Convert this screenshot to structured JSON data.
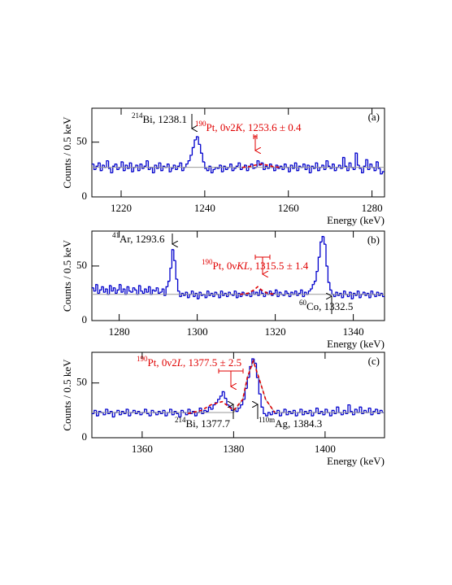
{
  "chart_data": [
    {
      "type": "histogram",
      "panel_label": "(a)",
      "xlabel": "Energy (keV)",
      "ylabel": "Counts / 0.5 keV",
      "xlim": [
        1213,
        1283
      ],
      "ylim": [
        0,
        81
      ],
      "xticks": [
        1220,
        1240,
        1260,
        1280
      ],
      "yticks": [
        0,
        50
      ],
      "color": "#0000cc",
      "bins": [
        1213,
        1213.5,
        1214,
        1214.5,
        1215,
        1215.5,
        1216,
        1216.5,
        1217,
        1217.5,
        1218,
        1218.5,
        1219,
        1219.5,
        1220,
        1220.5,
        1221,
        1221.5,
        1222,
        1222.5,
        1223,
        1223.5,
        1224,
        1224.5,
        1225,
        1225.5,
        1226,
        1226.5,
        1227,
        1227.5,
        1228,
        1228.5,
        1229,
        1229.5,
        1230,
        1230.5,
        1231,
        1231.5,
        1232,
        1232.5,
        1233,
        1233.5,
        1234,
        1234.5,
        1235,
        1235.5,
        1236,
        1236.5,
        1237,
        1237.5,
        1238,
        1238.5,
        1239,
        1239.5,
        1240,
        1240.5,
        1241,
        1241.5,
        1242,
        1242.5,
        1243,
        1243.5,
        1244,
        1244.5,
        1245,
        1245.5,
        1246,
        1246.5,
        1247,
        1247.5,
        1248,
        1248.5,
        1249,
        1249.5,
        1250,
        1250.5,
        1251,
        1251.5,
        1252,
        1252.5,
        1253,
        1253.5,
        1254,
        1254.5,
        1255,
        1255.5,
        1256,
        1256.5,
        1257,
        1257.5,
        1258,
        1258.5,
        1259,
        1259.5,
        1260,
        1260.5,
        1261,
        1261.5,
        1262,
        1262.5,
        1263,
        1263.5,
        1264,
        1264.5,
        1265,
        1265.5,
        1266,
        1266.5,
        1267,
        1267.5,
        1268,
        1268.5,
        1269,
        1269.5,
        1270,
        1270.5,
        1271,
        1271.5,
        1272,
        1272.5,
        1273,
        1273.5,
        1274,
        1274.5,
        1275,
        1275.5,
        1276,
        1276.5,
        1277,
        1277.5,
        1278,
        1278.5,
        1279,
        1279.5,
        1280,
        1280.5,
        1281,
        1281.5,
        1282,
        1282.5,
        1283
      ],
      "values": [
        30,
        25,
        28,
        31,
        24,
        29,
        27,
        33,
        26,
        22,
        28,
        30,
        25,
        27,
        32,
        24,
        29,
        26,
        31,
        23,
        27,
        29,
        24,
        30,
        26,
        28,
        33,
        25,
        27,
        22,
        29,
        26,
        31,
        24,
        28,
        27,
        30,
        23,
        26,
        29,
        25,
        28,
        31,
        24,
        27,
        30,
        33,
        38,
        45,
        52,
        55,
        48,
        40,
        32,
        26,
        24,
        28,
        22,
        25,
        27,
        26,
        29,
        23,
        28,
        25,
        27,
        30,
        24,
        26,
        28,
        31,
        25,
        27,
        29,
        24,
        28,
        30,
        26,
        27,
        33,
        29,
        31,
        25,
        28,
        26,
        30,
        27,
        24,
        29,
        26,
        28,
        25,
        30,
        27,
        23,
        29,
        26,
        31,
        24,
        28,
        27,
        30,
        25,
        29,
        22,
        28,
        26,
        31,
        24,
        27,
        29,
        25,
        33,
        28,
        26,
        30,
        24,
        27,
        29,
        26,
        36,
        28,
        24,
        31,
        27,
        25,
        40,
        29,
        26,
        22,
        28,
        34,
        25,
        30,
        27,
        24,
        32,
        26,
        21,
        23
      ],
      "fits": [
        {
          "x": [
            1213,
            1283
          ],
          "values": [
            27,
            27
          ],
          "color": "#999999",
          "dash": false
        },
        {
          "x": [
            1249,
            1250.5,
            1252,
            1253.6,
            1255,
            1256.5,
            1258
          ],
          "values": [
            27,
            27.5,
            29,
            30,
            29,
            27.5,
            27
          ],
          "color": "#e00000",
          "dash": true
        }
      ],
      "annotations": [
        {
          "color": "#000000",
          "parts": [
            {
              "text": "214",
              "style": "sup"
            },
            {
              "text": "Bi, 1238.1"
            }
          ]
        },
        {
          "color": "#e00000",
          "parts": [
            {
              "text": "190",
              "style": "sup"
            },
            {
              "text": "Pt, 0ν2"
            },
            {
              "text": "K",
              "style": "italic"
            },
            {
              "text": ", 1253.6 ± 0.4"
            }
          ]
        }
      ]
    },
    {
      "type": "histogram",
      "panel_label": "(b)",
      "xlabel": "Energy (keV)",
      "ylabel": "Counts / 0.5 keV",
      "xlim": [
        1273,
        1348
      ],
      "ylim": [
        0,
        82
      ],
      "xticks": [
        1280,
        1300,
        1320,
        1340
      ],
      "yticks": [
        0,
        50
      ],
      "color": "#0000cc",
      "bins": [
        1273,
        1273.5,
        1274,
        1274.5,
        1275,
        1275.5,
        1276,
        1276.5,
        1277,
        1277.5,
        1278,
        1278.5,
        1279,
        1279.5,
        1280,
        1280.5,
        1281,
        1281.5,
        1282,
        1282.5,
        1283,
        1283.5,
        1284,
        1284.5,
        1285,
        1285.5,
        1286,
        1286.5,
        1287,
        1287.5,
        1288,
        1288.5,
        1289,
        1289.5,
        1290,
        1290.5,
        1291,
        1291.5,
        1292,
        1292.5,
        1293,
        1293.5,
        1294,
        1294.5,
        1295,
        1295.5,
        1296,
        1296.5,
        1297,
        1297.5,
        1298,
        1298.5,
        1299,
        1299.5,
        1300,
        1300.5,
        1301,
        1301.5,
        1302,
        1302.5,
        1303,
        1303.5,
        1304,
        1304.5,
        1305,
        1305.5,
        1306,
        1306.5,
        1307,
        1307.5,
        1308,
        1308.5,
        1309,
        1309.5,
        1310,
        1310.5,
        1311,
        1311.5,
        1312,
        1312.5,
        1313,
        1313.5,
        1314,
        1314.5,
        1315,
        1315.5,
        1316,
        1316.5,
        1317,
        1317.5,
        1318,
        1318.5,
        1319,
        1319.5,
        1320,
        1320.5,
        1321,
        1321.5,
        1322,
        1322.5,
        1323,
        1323.5,
        1324,
        1324.5,
        1325,
        1325.5,
        1326,
        1326.5,
        1327,
        1327.5,
        1328,
        1328.5,
        1329,
        1329.5,
        1330,
        1330.5,
        1331,
        1331.5,
        1332,
        1332.5,
        1333,
        1333.5,
        1334,
        1334.5,
        1335,
        1335.5,
        1336,
        1336.5,
        1337,
        1337.5,
        1338,
        1338.5,
        1339,
        1339.5,
        1340,
        1340.5,
        1341,
        1341.5,
        1342,
        1342.5,
        1343,
        1343.5,
        1344,
        1344.5,
        1345,
        1345.5,
        1346,
        1346.5,
        1347,
        1347.5,
        1348
      ],
      "values": [
        30,
        27,
        33,
        25,
        28,
        31,
        26,
        29,
        24,
        32,
        27,
        30,
        25,
        28,
        33,
        26,
        29,
        24,
        31,
        27,
        26,
        30,
        28,
        24,
        32,
        27,
        25,
        29,
        26,
        31,
        24,
        28,
        27,
        30,
        25,
        26,
        29,
        23,
        31,
        36,
        48,
        65,
        55,
        38,
        27,
        22,
        25,
        23,
        26,
        21,
        24,
        27,
        22,
        25,
        20,
        26,
        23,
        24,
        21,
        27,
        23,
        25,
        22,
        26,
        24,
        21,
        27,
        23,
        25,
        22,
        26,
        24,
        23,
        27,
        21,
        25,
        22,
        26,
        24,
        23,
        25,
        22,
        27,
        24,
        26,
        23,
        28,
        25,
        22,
        26,
        24,
        27,
        23,
        25,
        28,
        22,
        26,
        24,
        23,
        27,
        25,
        22,
        26,
        24,
        27,
        23,
        25,
        28,
        22,
        26,
        24,
        27,
        29,
        33,
        36,
        45,
        58,
        72,
        77,
        70,
        50,
        35,
        28,
        24,
        22,
        26,
        23,
        25,
        21,
        27,
        24,
        22,
        26,
        20,
        25,
        23,
        27,
        21,
        24,
        26,
        23,
        25,
        21,
        27,
        24,
        22,
        26,
        23,
        25,
        22
      ],
      "fits": [
        {
          "x": [
            1273,
            1348
          ],
          "values": [
            24,
            24
          ],
          "color": "#999999",
          "dash": false
        },
        {
          "x": [
            1311,
            1313,
            1314.5,
            1315.5,
            1316.5,
            1318,
            1320
          ],
          "values": [
            24,
            25,
            28,
            31,
            28,
            25,
            24
          ],
          "color": "#e00000",
          "dash": true
        }
      ],
      "annotations": [
        {
          "color": "#000000",
          "parts": [
            {
              "text": "41",
              "style": "sup"
            },
            {
              "text": "Ar, 1293.6"
            }
          ]
        },
        {
          "color": "#e00000",
          "parts": [
            {
              "text": "190",
              "style": "sup"
            },
            {
              "text": "Pt, 0ν"
            },
            {
              "text": "KL",
              "style": "italic"
            },
            {
              "text": ", 1315.5 ± 1.4"
            }
          ]
        },
        {
          "color": "#000000",
          "parts": [
            {
              "text": "60",
              "style": "sup"
            },
            {
              "text": "Co, 1332.5"
            }
          ]
        }
      ]
    },
    {
      "type": "histogram",
      "panel_label": "(c)",
      "xlabel": "Energy (keV)",
      "ylabel": "Counts / 0.5 keV",
      "xlim": [
        1349,
        1413
      ],
      "ylim": [
        0,
        78
      ],
      "xticks": [
        1360,
        1380,
        1400
      ],
      "yticks": [
        0,
        50
      ],
      "color": "#0000cc",
      "bins": [
        1349,
        1349.5,
        1350,
        1350.5,
        1351,
        1351.5,
        1352,
        1352.5,
        1353,
        1353.5,
        1354,
        1354.5,
        1355,
        1355.5,
        1356,
        1356.5,
        1357,
        1357.5,
        1358,
        1358.5,
        1359,
        1359.5,
        1360,
        1360.5,
        1361,
        1361.5,
        1362,
        1362.5,
        1363,
        1363.5,
        1364,
        1364.5,
        1365,
        1365.5,
        1366,
        1366.5,
        1367,
        1367.5,
        1368,
        1368.5,
        1369,
        1369.5,
        1370,
        1370.5,
        1371,
        1371.5,
        1372,
        1372.5,
        1373,
        1373.5,
        1374,
        1374.5,
        1375,
        1375.5,
        1376,
        1376.5,
        1377,
        1377.5,
        1378,
        1378.5,
        1379,
        1379.5,
        1380,
        1380.5,
        1381,
        1381.5,
        1382,
        1382.5,
        1383,
        1383.5,
        1384,
        1384.5,
        1385,
        1385.5,
        1386,
        1386.5,
        1387,
        1387.5,
        1388,
        1388.5,
        1389,
        1389.5,
        1390,
        1390.5,
        1391,
        1391.5,
        1392,
        1392.5,
        1393,
        1393.5,
        1394,
        1394.5,
        1395,
        1395.5,
        1396,
        1396.5,
        1397,
        1397.5,
        1398,
        1398.5,
        1399,
        1399.5,
        1400,
        1400.5,
        1401,
        1401.5,
        1402,
        1402.5,
        1403,
        1403.5,
        1404,
        1404.5,
        1405,
        1405.5,
        1406,
        1406.5,
        1407,
        1407.5,
        1408,
        1408.5,
        1409,
        1409.5,
        1410,
        1410.5,
        1411,
        1411.5,
        1412,
        1412.5,
        1413
      ],
      "values": [
        22,
        25,
        20,
        24,
        23,
        21,
        26,
        22,
        24,
        19,
        23,
        25,
        21,
        24,
        22,
        26,
        20,
        23,
        25,
        22,
        24,
        21,
        23,
        26,
        22,
        20,
        25,
        23,
        21,
        24,
        22,
        25,
        20,
        23,
        26,
        21,
        24,
        22,
        19,
        25,
        23,
        21,
        26,
        22,
        24,
        20,
        23,
        27,
        22,
        25,
        24,
        28,
        26,
        30,
        32,
        35,
        38,
        42,
        36,
        30,
        28,
        25,
        26,
        24,
        27,
        30,
        35,
        45,
        55,
        65,
        72,
        68,
        55,
        40,
        28,
        22,
        20,
        23,
        21,
        24,
        22,
        25,
        20,
        23,
        26,
        21,
        24,
        22,
        25,
        20,
        23,
        26,
        21,
        24,
        22,
        25,
        20,
        23,
        27,
        22,
        24,
        21,
        26,
        23,
        20,
        25,
        22,
        28,
        23,
        21,
        25,
        22,
        30,
        24,
        21,
        26,
        23,
        28,
        22,
        25,
        23,
        27,
        21,
        24,
        26,
        22,
        25,
        23
      ],
      "fits": [
        {
          "x": [
            1349,
            1380,
            1382,
            1383,
            1384.3,
            1385.5,
            1387,
            1389,
            1413
          ],
          "values": [
            23,
            23,
            35,
            55,
            70,
            55,
            35,
            23,
            23
          ],
          "color": "#999999",
          "dash": false
        },
        {
          "x": [
            1370,
            1373,
            1375,
            1377.5,
            1380,
            1382,
            1383,
            1384.3,
            1385.5,
            1387,
            1389
          ],
          "values": [
            22,
            25,
            30,
            33,
            25,
            35,
            55,
            70,
            55,
            35,
            23
          ],
          "color": "#e00000",
          "dash": true
        }
      ],
      "annotations": [
        {
          "color": "#e00000",
          "parts": [
            {
              "text": "190",
              "style": "sup"
            },
            {
              "text": "Pt, 0ν2"
            },
            {
              "text": "L",
              "style": "italic"
            },
            {
              "text": ", 1377.5 ± 2.5"
            }
          ]
        },
        {
          "color": "#000000",
          "parts": [
            {
              "text": "214",
              "style": "sup"
            },
            {
              "text": "Bi, 1377.7"
            }
          ]
        },
        {
          "color": "#000000",
          "parts": [
            {
              "text": "110m",
              "style": "sup"
            },
            {
              "text": "Ag, 1384.3"
            }
          ]
        }
      ]
    }
  ]
}
